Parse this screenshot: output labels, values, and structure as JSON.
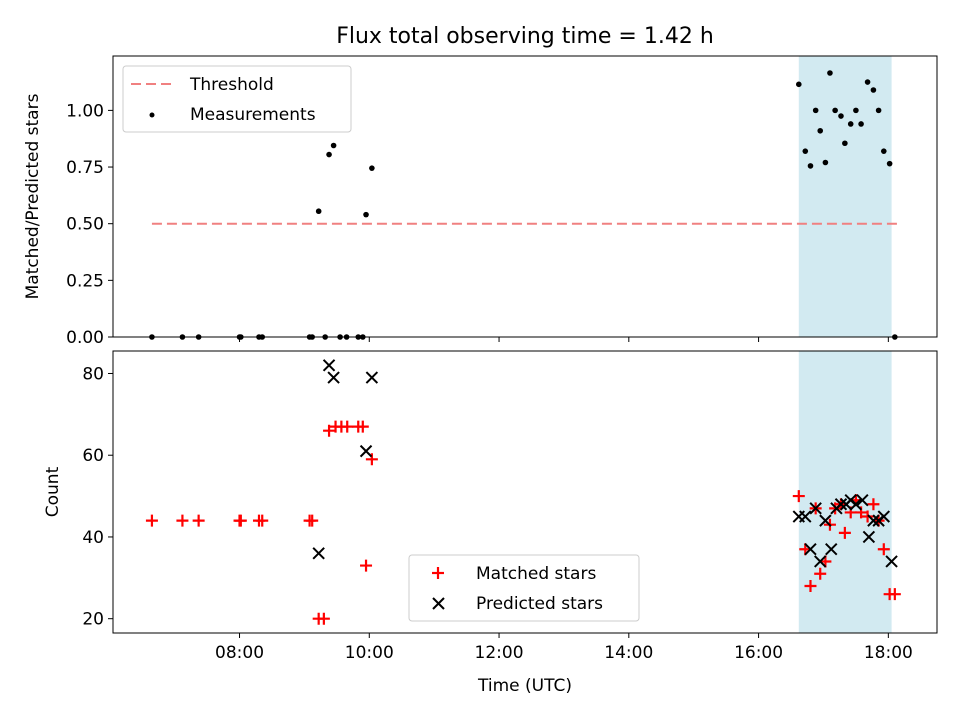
{
  "figure": {
    "title": "Flux total observing time = 1.42 h",
    "xlabel": "Time (UTC)"
  },
  "colors": {
    "threshold": "#f08080",
    "measurements": "#000000",
    "matched": "#ff0000",
    "predicted": "#000000",
    "span_fill": "#add8e6"
  },
  "chart_data": [
    {
      "type": "scatter",
      "panel": "top",
      "ylabel": "Matched/Predicted stars",
      "xlim_hours": [
        6.05,
        18.75
      ],
      "ylim": [
        0,
        1.24
      ],
      "yticks": [
        0.0,
        0.25,
        0.5,
        0.75,
        1.0
      ],
      "ytick_labels": [
        "0.00",
        "0.25",
        "0.50",
        "0.75",
        "1.00"
      ],
      "xticks_hours": [
        8,
        10,
        12,
        14,
        16,
        18
      ],
      "xtick_labels": [
        "",
        "",
        "",
        "",
        "",
        ""
      ],
      "shaded_span_hours": [
        16.62,
        18.05
      ],
      "legend": {
        "placement": "upper-left",
        "entries": [
          "Threshold",
          "Measurements"
        ]
      },
      "threshold": {
        "name": "Threshold",
        "y": 0.5,
        "x_hours": [
          6.65,
          18.15
        ],
        "style": "dashed"
      },
      "series": [
        {
          "name": "Measurements",
          "marker": "dot",
          "x_hours": [
            6.65,
            7.12,
            7.37,
            8.0,
            8.02,
            8.3,
            8.35,
            9.08,
            9.12,
            9.22,
            9.32,
            9.38,
            9.45,
            9.55,
            9.65,
            9.83,
            9.9,
            9.95,
            10.04,
            16.62,
            16.72,
            16.8,
            16.88,
            16.95,
            17.03,
            17.1,
            17.18,
            17.27,
            17.33,
            17.42,
            17.5,
            17.58,
            17.68,
            17.77,
            17.85,
            17.93,
            18.02,
            18.1
          ],
          "y": [
            0.0,
            0.0,
            0.0,
            0.0,
            0.0,
            0.0,
            0.0,
            0.0,
            0.0,
            0.555,
            0.0,
            0.805,
            0.845,
            0.0,
            0.0,
            0.0,
            0.0,
            0.54,
            0.745,
            1.115,
            0.82,
            0.755,
            1.0,
            0.91,
            0.77,
            1.165,
            1.0,
            0.975,
            0.855,
            0.94,
            1.0,
            0.94,
            1.125,
            1.09,
            1.0,
            0.82,
            0.765,
            0.0
          ]
        }
      ]
    },
    {
      "type": "scatter",
      "panel": "bottom",
      "ylabel": "Count",
      "xlabel": "Time (UTC)",
      "xlim_hours": [
        6.05,
        18.75
      ],
      "ylim": [
        16.5,
        85.5
      ],
      "yticks": [
        20,
        40,
        60,
        80
      ],
      "ytick_labels": [
        "20",
        "40",
        "60",
        "80"
      ],
      "xticks_hours": [
        8,
        10,
        12,
        14,
        16,
        18
      ],
      "xtick_labels": [
        "08:00",
        "10:00",
        "12:00",
        "14:00",
        "16:00",
        "18:00"
      ],
      "shaded_span_hours": [
        16.62,
        18.05
      ],
      "legend": {
        "placement": "lower-center",
        "entries": [
          "Matched stars",
          "Predicted stars"
        ]
      },
      "series": [
        {
          "name": "Matched stars",
          "marker": "plus",
          "x_hours": [
            6.65,
            7.12,
            7.37,
            8.0,
            8.02,
            8.3,
            8.35,
            9.08,
            9.12,
            9.22,
            9.3,
            9.38,
            9.48,
            9.57,
            9.66,
            9.83,
            9.9,
            9.95,
            10.04,
            16.62,
            16.72,
            16.8,
            16.88,
            16.95,
            17.03,
            17.1,
            17.18,
            17.27,
            17.33,
            17.42,
            17.5,
            17.58,
            17.68,
            17.77,
            17.85,
            17.93,
            18.02,
            18.1
          ],
          "y": [
            44,
            44,
            44,
            44,
            44,
            44,
            44,
            44,
            44,
            20,
            20,
            66,
            67,
            67,
            67,
            67,
            67,
            33,
            59,
            50,
            37,
            28,
            47,
            31,
            34,
            43,
            47,
            48,
            41,
            46,
            49,
            46,
            45,
            48,
            44,
            37,
            26,
            26
          ]
        },
        {
          "name": "Predicted stars",
          "marker": "x",
          "x_hours": [
            9.22,
            9.38,
            9.45,
            9.95,
            10.04,
            16.62,
            16.72,
            16.8,
            16.88,
            16.95,
            17.03,
            17.12,
            17.2,
            17.27,
            17.35,
            17.42,
            17.5,
            17.6,
            17.7,
            17.77,
            17.85,
            17.93,
            18.05
          ],
          "y": [
            36,
            82,
            79,
            61,
            79,
            45,
            45,
            37,
            47,
            34,
            44,
            37,
            47,
            48,
            48,
            49,
            48,
            49,
            40,
            44,
            44,
            45,
            34
          ]
        }
      ]
    }
  ]
}
